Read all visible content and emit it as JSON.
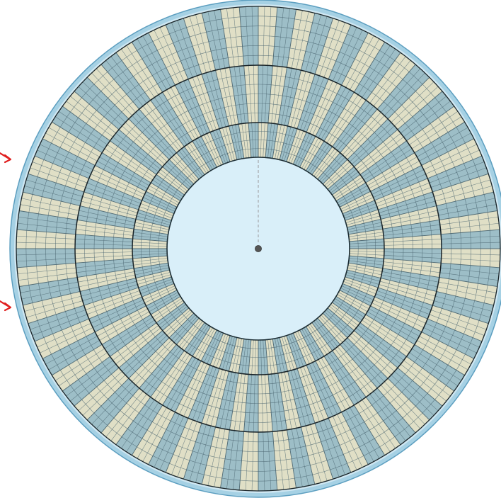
{
  "mesh": {
    "inner_rings": [
      {
        "sectors": 80,
        "colors": {
          "a": "#e0dfc6",
          "b": "#9dbec7"
        }
      }
    ],
    "colors": {
      "background": "#ffffff",
      "outer_rim": "#a6d1e4",
      "outer_rim_stroke": "#5d9fc0",
      "gap_band": "#cfe7f2",
      "hole_fill": "#d9eff9",
      "hole_stroke": "#1c2d34",
      "fine_grid": "#4b6570",
      "coarse_ring": "#1a2428",
      "arrow": "#e02020",
      "center_dot": "#555555",
      "guide_line": "#9a9a9a"
    },
    "arrow_count": 2
  }
}
